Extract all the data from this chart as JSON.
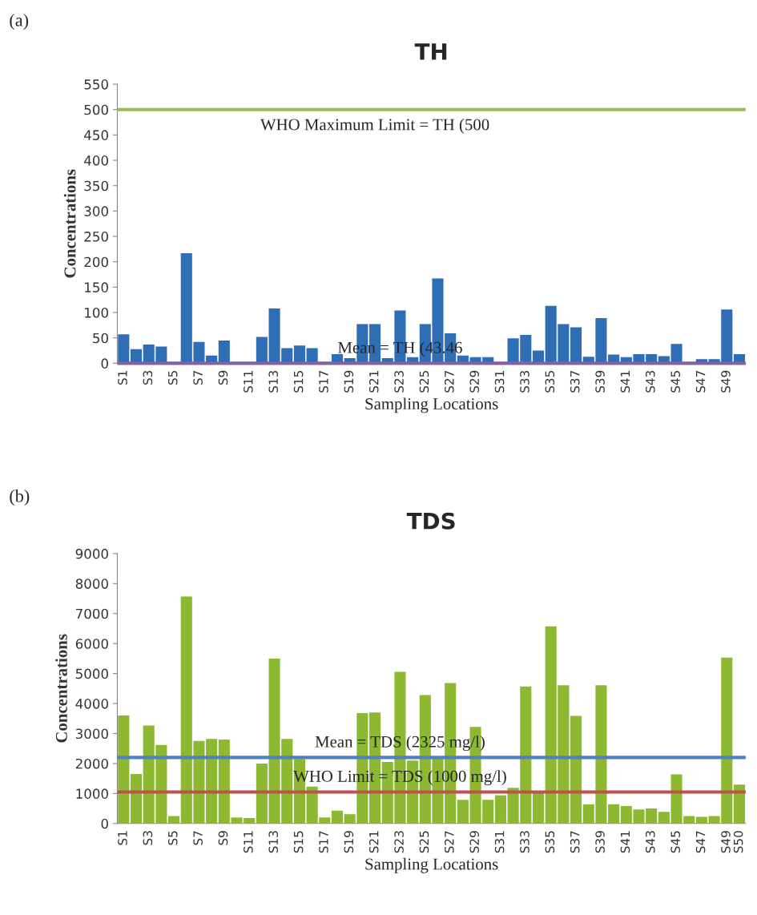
{
  "chart_data": [
    {
      "type": "bar",
      "title": "TH",
      "xlabel": "Sampling Locations",
      "ylabel": "Concentrations",
      "categories": [
        "S1",
        null,
        "S3",
        null,
        "S5",
        null,
        "S7",
        null,
        "S9",
        null,
        "S11",
        null,
        "S13",
        null,
        "S15",
        null,
        "S17",
        null,
        "S19",
        null,
        "S21",
        null,
        "S23",
        null,
        "S25",
        null,
        "S27",
        null,
        "S29",
        null,
        "S31",
        null,
        "S33",
        null,
        "S35",
        null,
        "S37",
        null,
        "S39",
        null,
        "S41",
        null,
        "S43",
        null,
        "S45",
        null,
        "S47",
        null,
        "S49",
        null
      ],
      "values": [
        57,
        28,
        37,
        33,
        null,
        217,
        42,
        15,
        45,
        0,
        0,
        52,
        108,
        30,
        35,
        30,
        null,
        18,
        10,
        77,
        77,
        10,
        104,
        12,
        77,
        167,
        59,
        15,
        12,
        12,
        null,
        49,
        56,
        25,
        113,
        77,
        71,
        13,
        89,
        17,
        12,
        18,
        18,
        14,
        38,
        null,
        8,
        8,
        106,
        18
      ],
      "color": "#2f6db5",
      "ylim": [
        0,
        550
      ],
      "yticks": [
        0,
        50,
        100,
        150,
        200,
        250,
        300,
        350,
        400,
        450,
        500,
        550
      ],
      "ref_lines": [
        {
          "axis": "y",
          "value": 500,
          "label": "WHO Maximum Limit = TH (500",
          "color": "#9bbb59"
        },
        {
          "axis": "y",
          "value": 0,
          "label": "Mean = TH (43.46",
          "color": "#8064a2"
        }
      ],
      "annotations": [
        "(a)"
      ]
    },
    {
      "type": "bar",
      "title": "TDS",
      "xlabel": "Sampling Locations",
      "ylabel": "Concentrations",
      "categories": [
        "S1",
        null,
        "S3",
        null,
        "S5",
        null,
        "S7",
        null,
        "S9",
        null,
        "S11",
        null,
        "S13",
        null,
        "S15",
        null,
        "S17",
        null,
        "S19",
        null,
        "S21",
        null,
        "S23",
        null,
        "S25",
        null,
        "S27",
        null,
        "S29",
        null,
        "S31",
        null,
        "S33",
        null,
        "S35",
        null,
        "S37",
        null,
        "S39",
        null,
        "S41",
        null,
        "S43",
        null,
        "S45",
        null,
        "S47",
        null,
        "S49",
        "S50"
      ],
      "values": [
        3600,
        1650,
        3270,
        2620,
        250,
        7570,
        2750,
        2820,
        2800,
        200,
        180,
        2000,
        5500,
        2820,
        2150,
        1230,
        200,
        430,
        310,
        3680,
        3700,
        2050,
        5060,
        2100,
        4280,
        2200,
        4680,
        790,
        3220,
        790,
        940,
        1190,
        4570,
        1010,
        6570,
        4610,
        3590,
        640,
        4610,
        640,
        580,
        470,
        500,
        390,
        1640,
        250,
        220,
        250,
        5530,
        1300
      ],
      "color": "#8db832",
      "ylim": [
        0,
        9000
      ],
      "yticks": [
        0,
        1000,
        2000,
        3000,
        4000,
        5000,
        6000,
        7000,
        8000,
        9000
      ],
      "ref_lines": [
        {
          "axis": "y",
          "value": 2200,
          "label": "Mean = TDS (2325 mg/l)",
          "color": "#4f81bd"
        },
        {
          "axis": "y",
          "value": 1050,
          "label": "WHO Limit = TDS (1000 mg/l)",
          "color": "#c0504d"
        }
      ],
      "annotations": [
        "(b)"
      ]
    }
  ]
}
